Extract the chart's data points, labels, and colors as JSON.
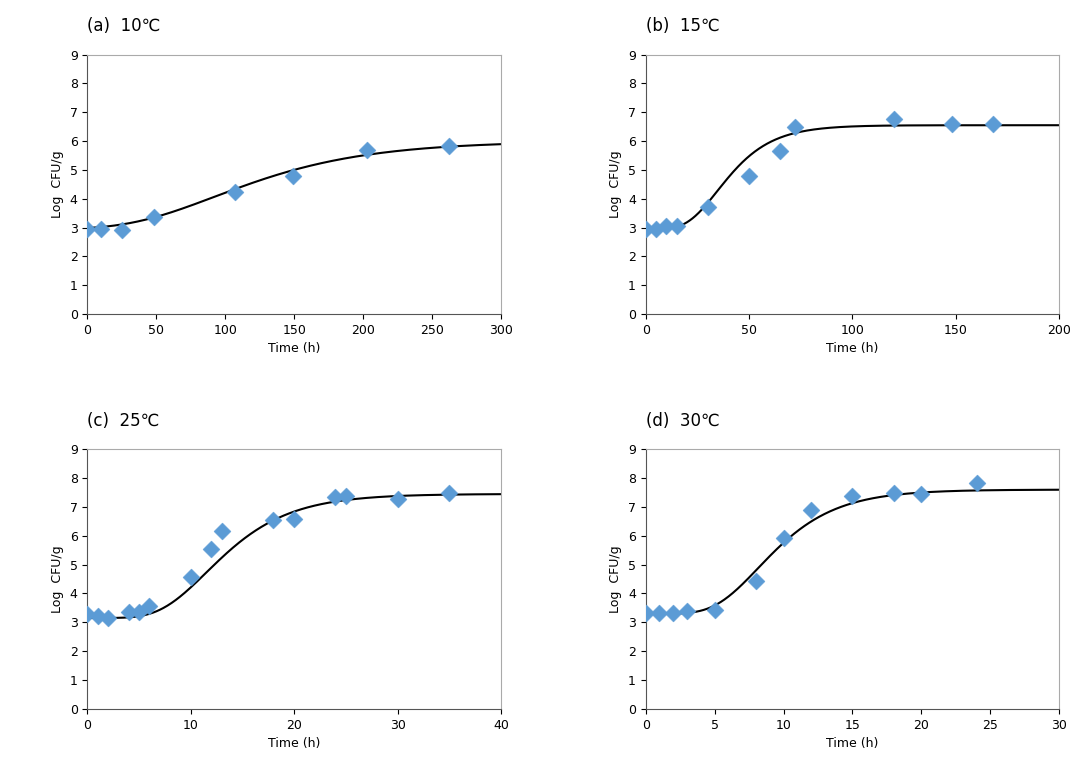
{
  "panels": [
    {
      "label": "(a)  10℃",
      "scatter_x": [
        0,
        10,
        25,
        48,
        107,
        149,
        203,
        262
      ],
      "scatter_y": [
        2.97,
        2.97,
        2.93,
        3.38,
        4.22,
        4.78,
        5.68,
        5.82
      ],
      "xlim": [
        0,
        300
      ],
      "xticks": [
        0,
        50,
        100,
        150,
        200,
        250,
        300
      ],
      "xlabel": "Time (h)",
      "curve_params": {
        "y0": 2.95,
        "ymax": 6.0,
        "mu": 0.018,
        "lag": 30
      }
    },
    {
      "label": "(b)  15℃",
      "scatter_x": [
        0,
        5,
        10,
        15,
        30,
        50,
        65,
        72,
        120,
        148,
        168
      ],
      "scatter_y": [
        2.97,
        2.97,
        3.05,
        3.05,
        3.72,
        4.78,
        5.65,
        6.5,
        6.76,
        6.58,
        6.58
      ],
      "xlim": [
        0,
        200
      ],
      "xticks": [
        0,
        50,
        100,
        150,
        200
      ],
      "xlabel": "Time (h)",
      "curve_params": {
        "y0": 2.95,
        "ymax": 6.55,
        "mu": 0.09,
        "lag": 20
      }
    },
    {
      "label": "(c)  25℃",
      "scatter_x": [
        0,
        1,
        2,
        4,
        5,
        6,
        10,
        12,
        13,
        18,
        20,
        24,
        25,
        30,
        35
      ],
      "scatter_y": [
        3.28,
        3.22,
        3.15,
        3.35,
        3.35,
        3.58,
        4.58,
        5.55,
        6.18,
        6.55,
        6.58,
        7.35,
        7.38,
        7.28,
        7.5
      ],
      "xlim": [
        0,
        40
      ],
      "xticks": [
        0,
        10,
        20,
        30,
        40
      ],
      "xlabel": "Time (h)",
      "curve_params": {
        "y0": 3.15,
        "ymax": 7.45,
        "mu": 0.35,
        "lag": 7
      }
    },
    {
      "label": "(d)  30℃",
      "scatter_x": [
        0,
        1,
        2,
        3,
        5,
        8,
        10,
        12,
        15,
        18,
        20,
        24
      ],
      "scatter_y": [
        3.32,
        3.32,
        3.32,
        3.38,
        3.42,
        4.42,
        5.92,
        6.88,
        7.38,
        7.48,
        7.45,
        7.82
      ],
      "xlim": [
        0,
        30
      ],
      "xticks": [
        0,
        5,
        10,
        15,
        20,
        25,
        30
      ],
      "xlabel": "Time (h)",
      "curve_params": {
        "y0": 3.3,
        "ymax": 7.6,
        "mu": 0.5,
        "lag": 5
      }
    }
  ],
  "ylabel": "Log  CFU/g",
  "ylim": [
    0,
    9
  ],
  "yticks": [
    0,
    1,
    2,
    3,
    4,
    5,
    6,
    7,
    8,
    9
  ],
  "scatter_color": "#5B9BD5",
  "line_color": "#000000",
  "marker": "D",
  "marker_size": 5,
  "label_fontsize": 12,
  "axis_fontsize": 9,
  "tick_fontsize": 9,
  "fig_bg": "#ffffff",
  "ax_bg": "#ffffff"
}
